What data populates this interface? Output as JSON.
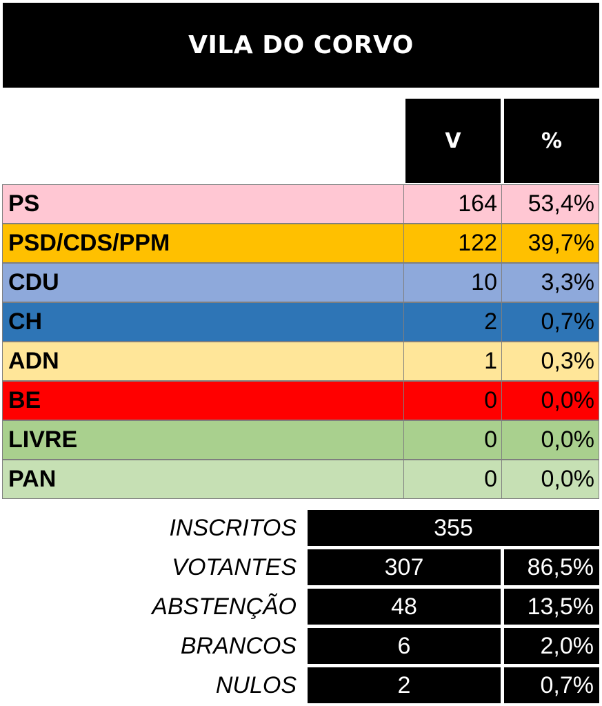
{
  "title": "VILA DO CORVO",
  "headers": {
    "votes": "V",
    "percent": "%"
  },
  "chart_data": {
    "type": "table",
    "title": "VILA DO CORVO",
    "columns": [
      "V",
      "%"
    ],
    "rows": [
      {
        "party": "PS",
        "votes": "164",
        "percent": "53,4%",
        "color": "#FFC7D3"
      },
      {
        "party": "PSD/CDS/PPM",
        "votes": "122",
        "percent": "39,7%",
        "color": "#FFC000"
      },
      {
        "party": "CDU",
        "votes": "10",
        "percent": "3,3%",
        "color": "#8EA9DB"
      },
      {
        "party": "CH",
        "votes": "2",
        "percent": "0,7%",
        "color": "#2E75B6"
      },
      {
        "party": "ADN",
        "votes": "1",
        "percent": "0,3%",
        "color": "#FFE699"
      },
      {
        "party": "BE",
        "votes": "0",
        "percent": "0,0%",
        "color": "#FF0000"
      },
      {
        "party": "LIVRE",
        "votes": "0",
        "percent": "0,0%",
        "color": "#A9D08E"
      },
      {
        "party": "PAN",
        "votes": "0",
        "percent": "0,0%",
        "color": "#C6E0B4"
      }
    ],
    "summary": [
      {
        "label": "INSCRITOS",
        "value": "355",
        "percent": ""
      },
      {
        "label": "VOTANTES",
        "value": "307",
        "percent": "86,5%"
      },
      {
        "label": "ABSTENÇÃO",
        "value": "48",
        "percent": "13,5%"
      },
      {
        "label": "BRANCOS",
        "value": "6",
        "percent": "2,0%"
      },
      {
        "label": "NULOS",
        "value": "2",
        "percent": "0,7%"
      }
    ]
  }
}
